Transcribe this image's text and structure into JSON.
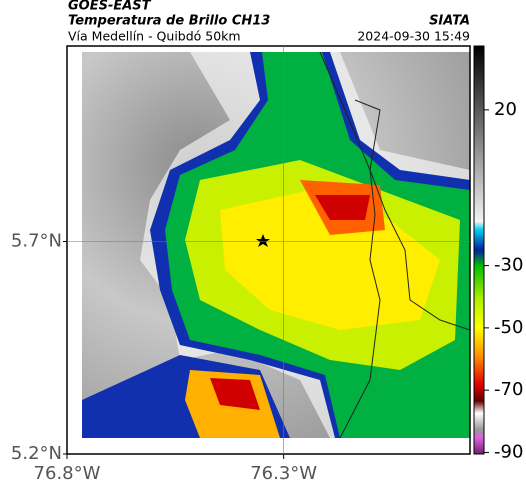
{
  "header": {
    "title": "GOES-EAST",
    "subtitle": "Temperatura de Brillo CH13",
    "source": "SIATA",
    "region": "Vía Medellín - Quibdó 50km",
    "timestamp": "2024-09-30 15:49"
  },
  "map": {
    "xlim": [
      -76.8,
      -75.87
    ],
    "ylim": [
      5.2,
      6.16
    ],
    "xticks": [
      {
        "value": -76.8,
        "label": "76.8°W"
      },
      {
        "value": -76.3,
        "label": "76.3°W"
      }
    ],
    "yticks": [
      {
        "value": 5.2,
        "label": "5.2°N"
      },
      {
        "value": 5.7,
        "label": "5.7°N"
      }
    ],
    "grid": true
  },
  "colorbar": {
    "range": [
      40.5,
      -90.5
    ],
    "ticks": [
      20,
      -30,
      -50,
      -70,
      -90
    ]
  }
}
